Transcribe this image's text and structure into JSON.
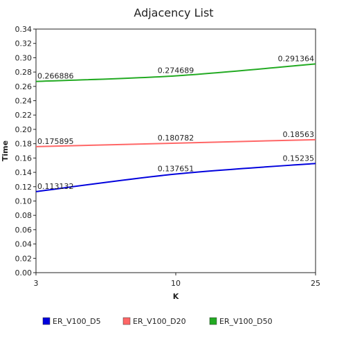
{
  "chart_data": {
    "type": "line",
    "title": "Adjacency List",
    "xlabel": "K",
    "ylabel": "Time",
    "categories": [
      "3",
      "10",
      "25"
    ],
    "ylim": [
      0,
      0.34
    ],
    "yticks": [
      "0.00",
      "0.02",
      "0.04",
      "0.06",
      "0.08",
      "0.10",
      "0.12",
      "0.14",
      "0.16",
      "0.18",
      "0.20",
      "0.22",
      "0.24",
      "0.26",
      "0.28",
      "0.30",
      "0.32",
      "0.34"
    ],
    "grid": false,
    "legend_position": "bottom",
    "series": [
      {
        "name": "ER_V100_D5",
        "color": "#0000dd",
        "values": [
          0.113132,
          0.137651,
          0.15235
        ],
        "labels": [
          "0.113132",
          "0.137651",
          "0.15235"
        ]
      },
      {
        "name": "ER_V100_D20",
        "color": "#ff6666",
        "values": [
          0.175895,
          0.180782,
          0.18563
        ],
        "labels": [
          "0.175895",
          "0.180782",
          "0.18563"
        ]
      },
      {
        "name": "ER_V100_D50",
        "color": "#22aa22",
        "values": [
          0.266886,
          0.274689,
          0.291364
        ],
        "labels": [
          "0.266886",
          "0.274689",
          "0.291364"
        ]
      }
    ]
  }
}
